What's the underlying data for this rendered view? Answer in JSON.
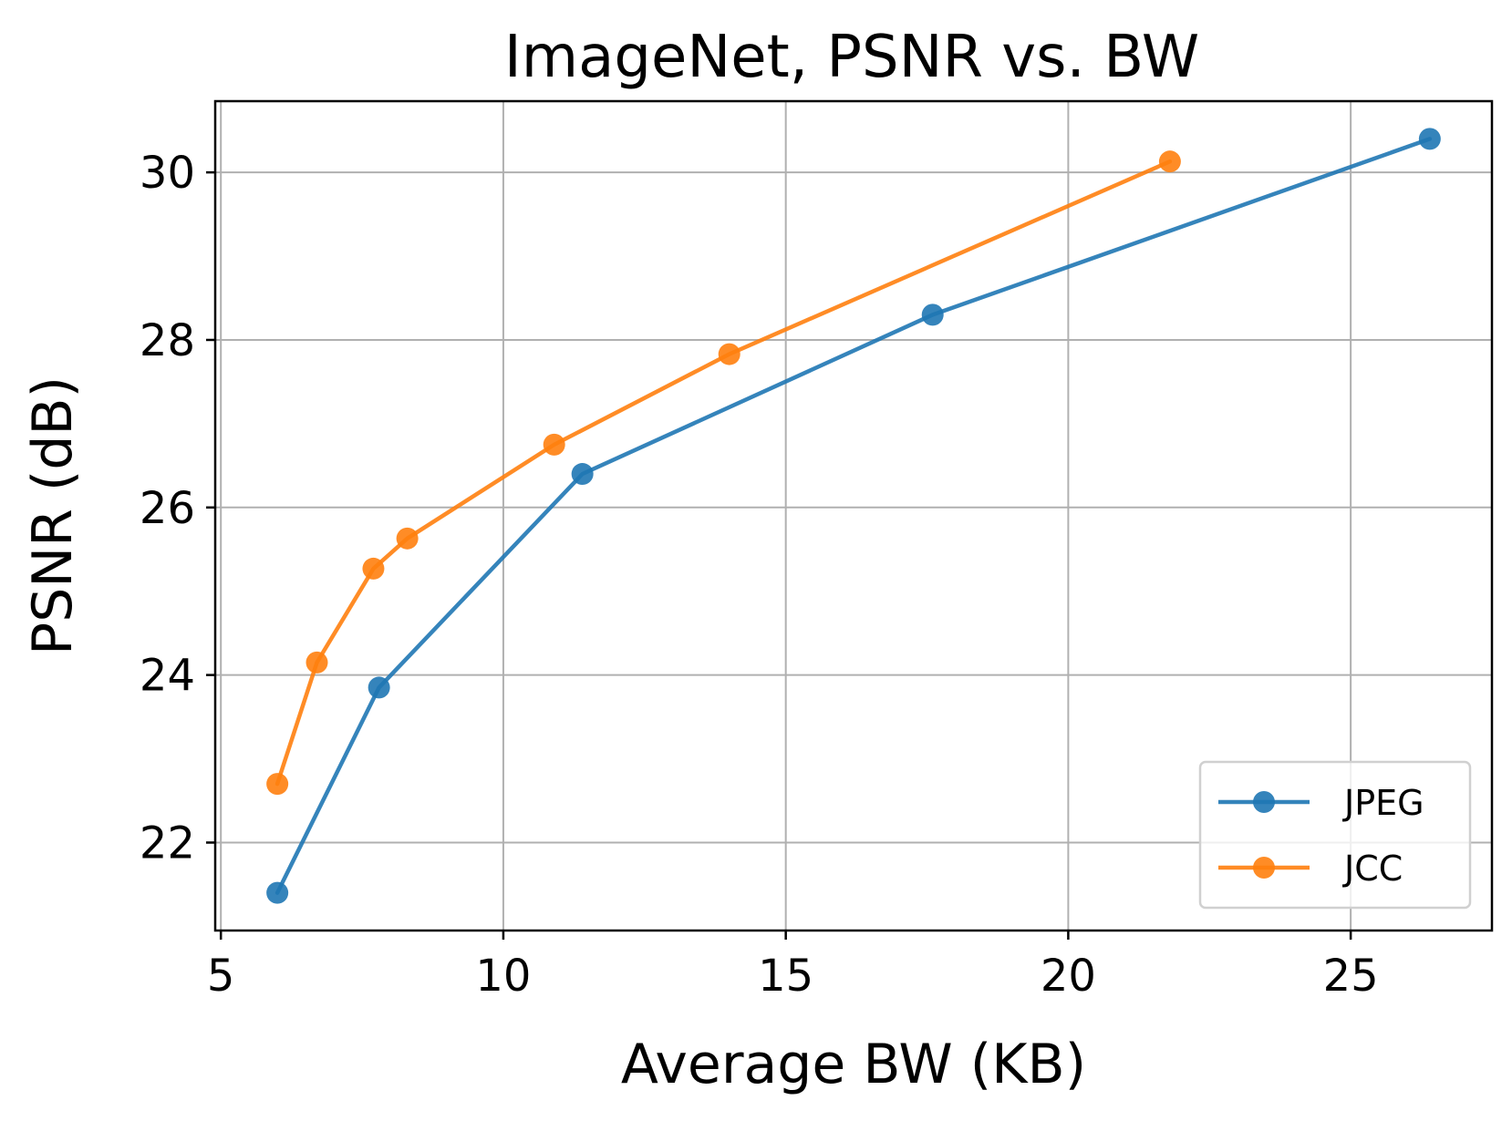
{
  "chart_data": {
    "type": "line",
    "title": "ImageNet, PSNR vs. BW",
    "xlabel": "Average BW (KB)",
    "ylabel": "PSNR (dB)",
    "xlim": [
      4.9,
      27.5
    ],
    "ylim": [
      20.95,
      30.85
    ],
    "xticks": [
      5,
      10,
      15,
      20,
      25
    ],
    "yticks": [
      22,
      24,
      26,
      28,
      30
    ],
    "grid": true,
    "legend_position": "lower-right",
    "series": [
      {
        "name": "JPEG",
        "color": "#1f77b4",
        "marker": "circle",
        "x": [
          6.0,
          7.8,
          11.4,
          17.6,
          26.4
        ],
        "y": [
          21.4,
          23.85,
          26.4,
          28.3,
          30.4
        ]
      },
      {
        "name": "JCC",
        "color": "#ff7f0e",
        "marker": "circle",
        "x": [
          6.0,
          6.7,
          7.7,
          8.3,
          10.9,
          14.0,
          21.8
        ],
        "y": [
          22.7,
          24.15,
          25.27,
          25.63,
          26.75,
          27.83,
          30.13
        ]
      }
    ]
  }
}
